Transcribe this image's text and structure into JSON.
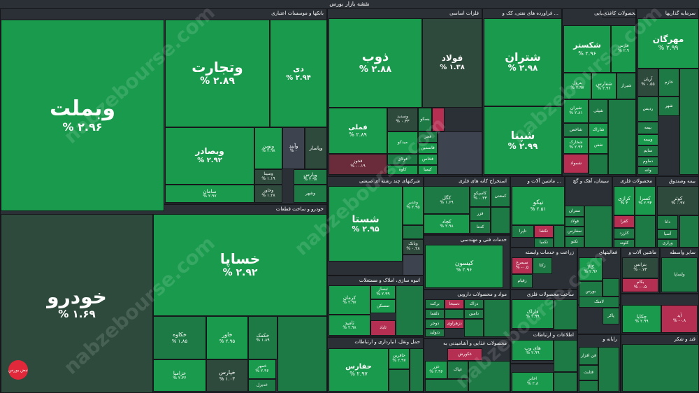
{
  "title": "نقشه بازار بورس",
  "watermark": "nabzebourse.com",
  "logo_text": "نبض بورس",
  "colors": {
    "g0": "#2d4a3c",
    "g1": "#1d7a45",
    "g2": "#1a9a4d",
    "g3": "#18b052",
    "r1": "#b52f52",
    "r0": "#6a2b3a",
    "n": "#3d4450"
  },
  "sectors": [
    {
      "label": "بانکها و موسسات اعتباری"
    },
    {
      "label": "خودرو و ساخت قطعات"
    },
    {
      "label": "فلزات اساسی"
    },
    {
      "label": "فراورده های نفتی، کک و ..."
    },
    {
      "label": "محصولات شیمیایی"
    },
    {
      "label": "محصولات کاغذی"
    },
    {
      "label": "سرمایه گذاریها"
    },
    {
      "label": "شرکتهای چند رشته ای صنعتی"
    },
    {
      "label": "استخراج کانه های فلزی"
    },
    {
      "label": "ماشین آلات و ..."
    },
    {
      "label": "سیمان، آهک و گچ"
    },
    {
      "label": "محصولات فلزی"
    },
    {
      "label": "بیمه وصندوق"
    },
    {
      "label": "انبوه سازی، املاک و مستغلات"
    },
    {
      "label": "خدمات فنی و مهندسی"
    },
    {
      "label": "زراعت و خدمات وابسته"
    },
    {
      "label": "فعالیتهای"
    },
    {
      "label": "ماشین آلات و"
    },
    {
      "label": "سایر واسطه"
    },
    {
      "label": "مواد و محصولات دارویی"
    },
    {
      "label": "ساخت محصولات فلزی"
    },
    {
      "label": "حمل ونقل، انبارداری و ارتباطات"
    },
    {
      "label": "محصولات غذایی و آشامیدنی به"
    },
    {
      "label": "اطلاعات و ارتباطات"
    },
    {
      "label": "رایانه و"
    },
    {
      "label": "قند و شکر"
    },
    {
      "label": "مخابرات"
    }
  ],
  "tiles": [
    {
      "name": "وبملت",
      "pct": "% ۲.۹۶",
      "color": "g2"
    },
    {
      "name": "وتجارت",
      "pct": "% ۲.۸۹",
      "color": "g2"
    },
    {
      "name": "دی",
      "pct": "% ۲.۹۴",
      "color": "g2"
    },
    {
      "name": "وبصادر",
      "pct": "% ۲.۹۲",
      "color": "g2"
    },
    {
      "name": "ونوین",
      "pct": "% ۲.۹۸",
      "color": "g2"
    },
    {
      "name": "وآیند",
      "pct": "% ۰",
      "color": "n"
    },
    {
      "name": "وپاسار",
      "pct": "",
      "color": "g0"
    },
    {
      "name": "وسینا",
      "pct": "% ۱.۱۹",
      "color": "g0"
    },
    {
      "name": "وپارس",
      "pct": "% ۲.۹۸",
      "color": "g1"
    },
    {
      "name": "سامان",
      "pct": "% ۲.۹۷",
      "color": "g2"
    },
    {
      "name": "وخاور",
      "pct": "% ۱.۲۸",
      "color": "g0"
    },
    {
      "name": "وشهر",
      "pct": "",
      "color": "g1"
    },
    {
      "name": "خودرو",
      "pct": "% ۱.۶۹",
      "color": "g0"
    },
    {
      "name": "خساپا",
      "pct": "% ۲.۹۲",
      "color": "g2"
    },
    {
      "name": "خکاوه",
      "pct": "% ۱.۸۵",
      "color": "g1"
    },
    {
      "name": "خاور",
      "pct": "% ۲.۹۵",
      "color": "g2"
    },
    {
      "name": "خکمک",
      "pct": "% ۱.۸۹",
      "color": "g1"
    },
    {
      "name": "خزامیا",
      "pct": "% ۲.۳۶",
      "color": "g2"
    },
    {
      "name": "خپارس",
      "pct": "% ۱.۰۳",
      "color": "g0"
    },
    {
      "name": "خمهر",
      "pct": "% ۲.۹۶",
      "color": "g2"
    },
    {
      "name": "خدیزل",
      "pct": "",
      "color": "g1"
    },
    {
      "name": "ذوب",
      "pct": "% ۲.۸۸",
      "color": "g2"
    },
    {
      "name": "فولاد",
      "pct": "% ۱.۳۸",
      "color": "g0"
    },
    {
      "name": "فملی",
      "pct": "% ۲.۸۹",
      "color": "g2"
    },
    {
      "name": "وسدید",
      "pct": "% ۰.۳۳",
      "color": "g0"
    },
    {
      "name": "بسکو",
      "pct": "",
      "color": "g1"
    },
    {
      "name": "فجر",
      "pct": "",
      "color": "g1"
    },
    {
      "name": "فاسمین",
      "pct": "",
      "color": "g2"
    },
    {
      "name": "میدکو",
      "pct": "",
      "color": "g2"
    },
    {
      "name": "فولای",
      "pct": "",
      "color": "g1"
    },
    {
      "name": "فخاس",
      "pct": "",
      "color": "g2"
    },
    {
      "name": "فخوز",
      "pct": "% -۰.۱۹",
      "color": "r0"
    },
    {
      "name": "کاوه",
      "pct": "",
      "color": "g2"
    },
    {
      "name": "کیمیا",
      "pct": "",
      "color": "g2"
    },
    {
      "name": "شتران",
      "pct": "% ۲.۹۸",
      "color": "g2"
    },
    {
      "name": "شپنا",
      "pct": "% ۲.۹۹",
      "color": "g2"
    },
    {
      "name": "شکستر",
      "pct": "% ۲.۹۶",
      "color": "g2"
    },
    {
      "name": "فارس",
      "pct": "% ۲.۹",
      "color": "g2"
    },
    {
      "name": "پترول",
      "pct": "% ۲.۹۷",
      "color": "g2"
    },
    {
      "name": "شفارس",
      "pct": "% ۲.۹۶",
      "color": "g2"
    },
    {
      "name": "شیراز",
      "pct": "",
      "color": "g1"
    },
    {
      "name": "شیران",
      "pct": "% ۲.۸۱",
      "color": "g2"
    },
    {
      "name": "شپلی",
      "pct": "",
      "color": "g1"
    },
    {
      "name": "شاخص",
      "pct": "",
      "color": "g1"
    },
    {
      "name": "شاراک",
      "pct": "",
      "color": "g2"
    },
    {
      "name": "شخارک",
      "pct": "% ۲.۹۴",
      "color": "g2"
    },
    {
      "name": "شفن",
      "pct": "",
      "color": "g2"
    },
    {
      "name": "شمواد",
      "pct": "",
      "color": "r1"
    },
    {
      "name": "مهرگان",
      "pct": "% ۲.۹۹",
      "color": "g2"
    },
    {
      "name": "آریان",
      "pct": "% ۰.۵۵",
      "color": "g0"
    },
    {
      "name": "خازم",
      "pct": "",
      "color": "g1"
    },
    {
      "name": "شهر",
      "pct": "",
      "color": "g1"
    },
    {
      "name": "ردیس",
      "pct": "",
      "color": "g1"
    },
    {
      "name": "بیمه",
      "pct": "",
      "color": "g1"
    },
    {
      "name": "وبیمه",
      "pct": "",
      "color": "g2"
    },
    {
      "name": "سایم",
      "pct": "",
      "color": "g1"
    },
    {
      "name": "دماوم",
      "pct": "",
      "color": "g1"
    },
    {
      "name": "وانه",
      "pct": "",
      "color": "g1"
    },
    {
      "name": "شستا",
      "pct": "% ۲.۹۵",
      "color": "g2"
    },
    {
      "name": "وغدیر",
      "pct": "% ۲.۹۵",
      "color": "g2"
    },
    {
      "name": "وبانک",
      "pct": "% ۰.۲۸",
      "color": "g0"
    },
    {
      "name": "کگل",
      "pct": "% ۱.۶۹",
      "color": "g1"
    },
    {
      "name": "کاسپکو",
      "pct": "% ۰.۳۳",
      "color": "g1"
    },
    {
      "name": "کمعدن",
      "pct": "",
      "color": "g1"
    },
    {
      "name": "کچاد",
      "pct": "% ۲.۹۸",
      "color": "g2"
    },
    {
      "name": "فزر",
      "pct": "",
      "color": "g1"
    },
    {
      "name": "کدما",
      "pct": "",
      "color": "g1"
    },
    {
      "name": "تیکو",
      "pct": "% ۲.۵۱",
      "color": "g2"
    },
    {
      "name": "تاپرا",
      "pct": "",
      "color": "g1"
    },
    {
      "name": "تکشا",
      "pct": "",
      "color": "r1"
    },
    {
      "name": "تکمبا",
      "pct": "",
      "color": "g1"
    },
    {
      "name": "ستران",
      "pct": "",
      "color": "g1"
    },
    {
      "name": "فولاد",
      "pct": "",
      "color": "g1"
    },
    {
      "name": "سفارس",
      "pct": "",
      "color": "g1"
    },
    {
      "name": "تکنو",
      "pct": "",
      "color": "g1"
    },
    {
      "name": "کرازی",
      "pct": "% ۳",
      "color": "g2"
    },
    {
      "name": "کسرا",
      "pct": "% ۲.۹۴",
      "color": "g2"
    },
    {
      "name": "کوثر",
      "pct": "% ۰.۹۷",
      "color": "g0"
    },
    {
      "name": "دانا",
      "pct": "",
      "color": "g1"
    },
    {
      "name": "کفرا",
      "pct": "",
      "color": "r1"
    },
    {
      "name": "آسیا",
      "pct": "",
      "color": "g1"
    },
    {
      "name": "کارزد",
      "pct": "",
      "color": "g1"
    },
    {
      "name": "کلوند",
      "pct": "",
      "color": "g1"
    },
    {
      "name": "وراری",
      "pct": "",
      "color": "g1"
    },
    {
      "name": "کرمان",
      "pct": "% ۲.۹۷",
      "color": "g2"
    },
    {
      "name": "ثبساز",
      "pct": "% ۲.۹۹",
      "color": "g2"
    },
    {
      "name": "تمسکن",
      "pct": "",
      "color": "g2"
    },
    {
      "name": "ثامید",
      "pct": "% ۲.۹۸",
      "color": "g2"
    },
    {
      "name": "ثاباد",
      "pct": "",
      "color": "r1"
    },
    {
      "name": "کیسون",
      "pct": "% ۲.۹۶",
      "color": "g2"
    },
    {
      "name": "سیمرغ",
      "pct": "% -۰.۵",
      "color": "r1"
    },
    {
      "name": "زکثا",
      "pct": "",
      "color": "g1"
    },
    {
      "name": "زقیام",
      "pct": "",
      "color": "g1"
    },
    {
      "name": "کالا",
      "pct": "% ۲.۹۶",
      "color": "g2"
    },
    {
      "name": "بورس",
      "pct": "",
      "color": "g1"
    },
    {
      "name": "بترانس",
      "pct": "% ۰.۷۳",
      "color": "g0"
    },
    {
      "name": "بکام",
      "pct": "% -۰.۵",
      "color": "r1"
    },
    {
      "name": "ولساپا",
      "pct": "",
      "color": "g1"
    },
    {
      "name": "برکت",
      "pct": "",
      "color": "g1"
    },
    {
      "name": "دسبحا",
      "pct": "",
      "color": "r1"
    },
    {
      "name": "دزاک",
      "pct": "",
      "color": "g1"
    },
    {
      "name": "دلقما",
      "pct": "",
      "color": "g1"
    },
    {
      "name": "دامین",
      "pct": "",
      "color": "g1"
    },
    {
      "name": "ذوجر",
      "pct": "",
      "color": "g1"
    },
    {
      "name": "دزهراوی",
      "pct": "",
      "color": "r1"
    },
    {
      "name": "دتولید",
      "pct": "",
      "color": "g1"
    },
    {
      "name": "فاراک",
      "pct": "% ۲.۹۹",
      "color": "g2"
    },
    {
      "name": "لامتک",
      "pct": "",
      "color": "g1"
    },
    {
      "name": "پاکر",
      "pct": "",
      "color": "g1"
    },
    {
      "name": "چکاپا",
      "pct": "% ۲.۹۹",
      "color": "g2"
    },
    {
      "name": "آپد",
      "pct": "% -۰.۸",
      "color": "r1"
    },
    {
      "name": "حفارس",
      "pct": "% ۲.۹۷",
      "color": "g2"
    },
    {
      "name": "حاقرین",
      "pct": "% ۲.۹۷",
      "color": "g2"
    },
    {
      "name": "غکورش",
      "pct": "",
      "color": "r1"
    },
    {
      "name": "غزر",
      "pct": "% ۲.۹۶",
      "color": "g2"
    },
    {
      "name": "غپاک",
      "pct": "",
      "color": "g1"
    },
    {
      "name": "های وب",
      "pct": "% ۲.۹۹",
      "color": "g2"
    },
    {
      "name": "فن افزار",
      "pct": "",
      "color": "g1"
    },
    {
      "name": "قثابت",
      "pct": "",
      "color": "g1"
    },
    {
      "name": "اخابر",
      "pct": "% ۲.۸",
      "color": "g2"
    }
  ]
}
